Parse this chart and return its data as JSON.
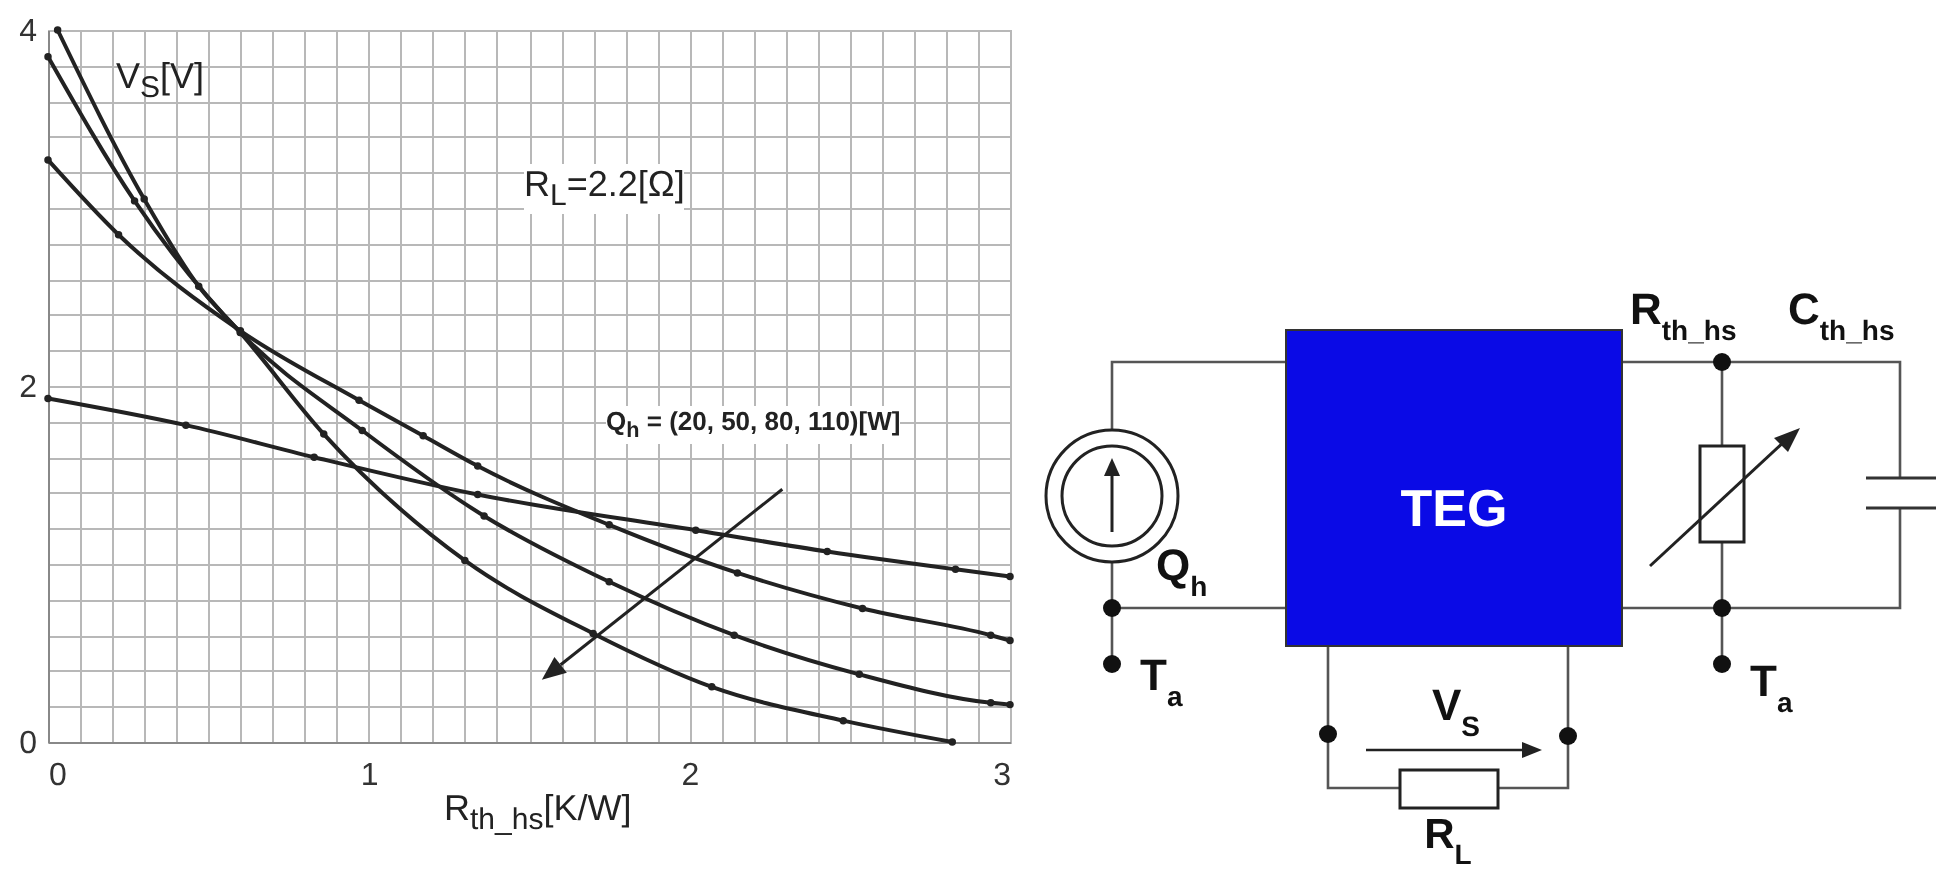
{
  "chart_data": [
    {
      "type": "line",
      "xlabel": "R$_{th_hs}$[K/W]",
      "ylabel": "V$_{S}$[V]",
      "annotations": [
        "R$_{L}$=2.2[Ω]",
        "Q$_{h}$ = (20, 50, 80, 110)[W]"
      ],
      "series": [
        {
          "color": "#222222",
          "x": [
            0,
            0.43,
            0.83,
            1.34,
            2.02,
            2.43,
            2.83,
            3.0
          ],
          "values": [
            1.93,
            1.78,
            1.6,
            1.39,
            1.19,
            1.07,
            0.97,
            0.93
          ]
        },
        {
          "color": "#222222",
          "x": [
            0,
            0.22,
            0.6,
            0.97,
            1.17,
            1.34,
            1.75,
            2.15,
            2.54,
            2.94,
            3.0
          ],
          "values": [
            3.27,
            2.85,
            2.31,
            1.92,
            1.72,
            1.55,
            1.22,
            0.95,
            0.75,
            0.6,
            0.57
          ]
        },
        {
          "color": "#222222",
          "x": [
            0,
            0.27,
            0.6,
            0.98,
            1.36,
            1.75,
            2.14,
            2.53,
            2.94,
            3.0
          ],
          "values": [
            3.85,
            3.04,
            2.3,
            1.75,
            1.27,
            0.9,
            0.6,
            0.38,
            0.22,
            0.21
          ]
        },
        {
          "color": "#222222",
          "x": [
            0.03,
            0.3,
            0.47,
            0.6,
            0.86,
            1.3,
            1.7,
            2.07,
            2.48,
            2.82
          ],
          "values": [
            4.0,
            3.05,
            2.56,
            2.3,
            1.73,
            1.02,
            0.61,
            0.31,
            0.12,
            0.0
          ]
        }
      ],
      "xlim": [
        0,
        3
      ],
      "ylim": [
        0,
        4
      ],
      "xticks": [
        0,
        {
          "value": 0.1,
          "label": null
        },
        {
          "value": 0.2,
          "label": null
        },
        {
          "value": 0.3,
          "label": null
        },
        {
          "value": 0.4,
          "label": null
        },
        {
          "value": 0.5,
          "label": null
        },
        {
          "value": 0.6,
          "label": null
        },
        {
          "value": 0.7,
          "label": null
        },
        {
          "value": 0.8,
          "label": null
        },
        {
          "value": 0.9,
          "label": null
        },
        1,
        {
          "value": 1.1,
          "label": null
        },
        {
          "value": 1.2,
          "label": null
        },
        {
          "value": 1.3,
          "label": null
        },
        {
          "value": 1.4,
          "label": null
        },
        {
          "value": 1.5,
          "label": null
        },
        {
          "value": 1.6,
          "label": null
        },
        {
          "value": 1.7,
          "label": null
        },
        {
          "value": 1.8,
          "label": null
        },
        {
          "value": 1.9,
          "label": null
        },
        2,
        {
          "value": 2.1,
          "label": null
        },
        {
          "value": 2.2,
          "label": null
        },
        {
          "value": 2.3,
          "label": null
        },
        {
          "value": 2.4,
          "label": null
        },
        {
          "value": 2.5,
          "label": null
        },
        {
          "value": 2.6,
          "label": null
        },
        {
          "value": 2.7,
          "label": null
        },
        {
          "value": 2.8,
          "label": null
        },
        {
          "value": 2.9,
          "label": null
        },
        3
      ],
      "yticks": [
        0,
        {
          "value": 0.2,
          "label": null
        },
        {
          "value": 0.4,
          "label": null
        },
        {
          "value": 0.6,
          "label": null
        },
        {
          "value": 0.8,
          "label": null
        },
        {
          "value": 1,
          "label": null
        },
        {
          "value": 1.2,
          "label": null
        },
        {
          "value": 1.4,
          "label": null
        },
        {
          "value": 1.6,
          "label": null
        },
        {
          "value": 1.8,
          "label": null
        },
        2,
        {
          "value": 2.2,
          "label": null
        },
        {
          "value": 2.4,
          "label": null
        },
        {
          "value": 2.6,
          "label": null
        },
        {
          "value": 2.8,
          "label": null
        },
        {
          "value": 3,
          "label": null
        },
        {
          "value": 3.2,
          "label": null
        },
        {
          "value": 3.4,
          "label": null
        },
        {
          "value": 3.6,
          "label": null
        },
        {
          "value": 3.8,
          "label": null
        },
        4
      ],
      "grid": true,
      "marker": "circle",
      "line_style": "solid"
    },
    {
      "type": "other",
      "annotations": [
        "TEG",
        "R$_{th_hs}$",
        "C$_{th_hs}$",
        "Q$_{h}$",
        "T$_{a}$",
        "T$_{a}$",
        "V$_{S}$",
        "R$_{L}$"
      ]
    }
  ]
}
